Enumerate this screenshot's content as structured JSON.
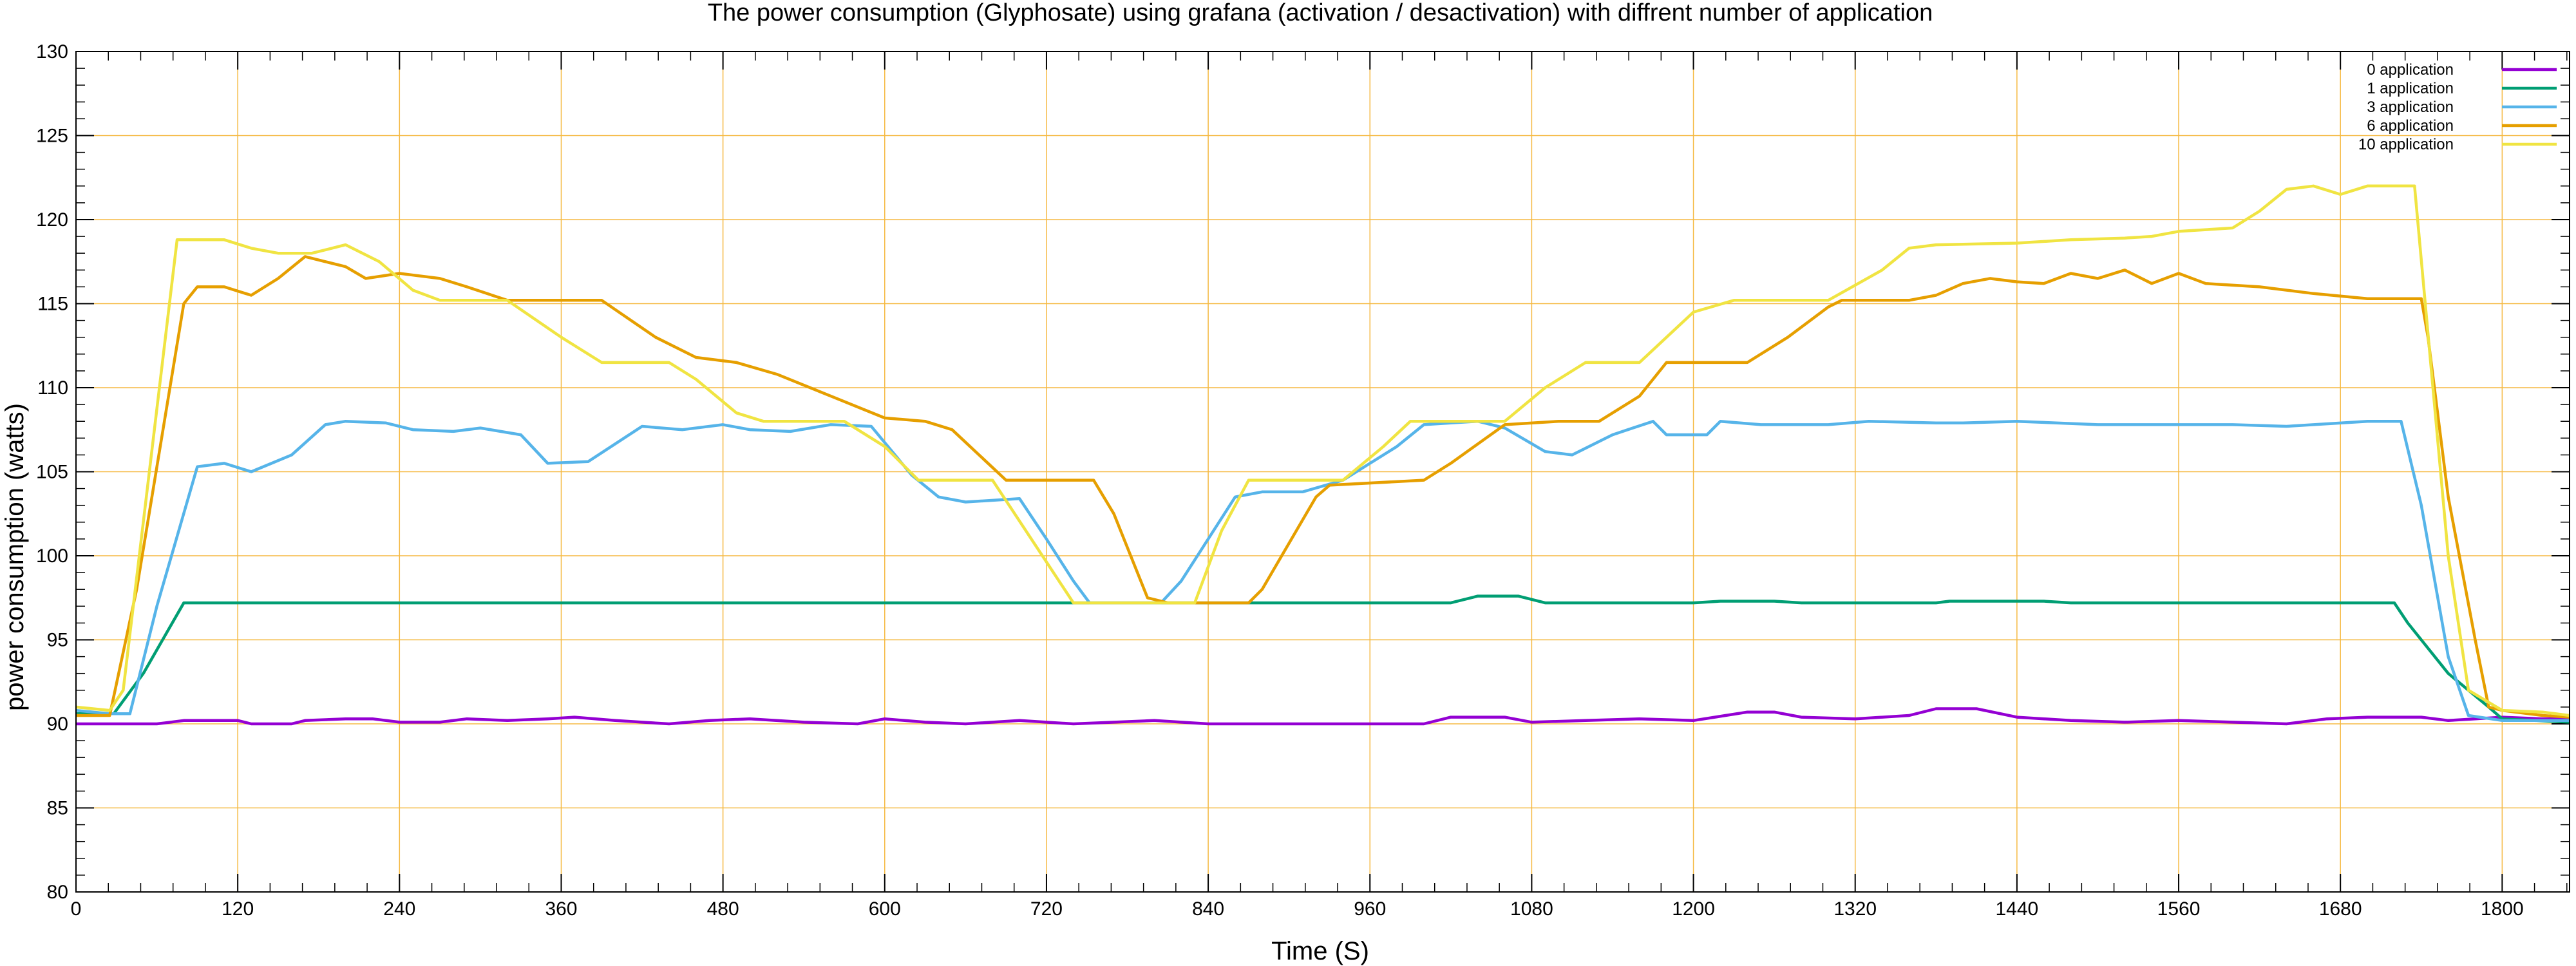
{
  "chart_data": {
    "type": "line",
    "title": "The power consumption (Glyphosate) using grafana (activation / desactivation) with diffrent number of application",
    "xlabel": "Time (S)",
    "ylabel": "power consumption (watts)",
    "xlim": [
      0,
      1850
    ],
    "ylim": [
      80,
      130
    ],
    "x_ticks": [
      0,
      120,
      240,
      360,
      480,
      600,
      720,
      840,
      960,
      1080,
      1200,
      1320,
      1440,
      1560,
      1680,
      1800
    ],
    "y_ticks": [
      80,
      85,
      90,
      95,
      100,
      105,
      110,
      115,
      120,
      125,
      130
    ],
    "grid": true,
    "grid_color": "#f5b942",
    "legend_position": "top-right",
    "series": [
      {
        "name": "0 application",
        "color": "#9400d3",
        "points": [
          [
            0,
            90.0
          ],
          [
            60,
            90.0
          ],
          [
            80,
            90.2
          ],
          [
            120,
            90.2
          ],
          [
            130,
            90.0
          ],
          [
            160,
            90.0
          ],
          [
            170,
            90.2
          ],
          [
            200,
            90.3
          ],
          [
            220,
            90.3
          ],
          [
            240,
            90.1
          ],
          [
            270,
            90.1
          ],
          [
            290,
            90.3
          ],
          [
            320,
            90.2
          ],
          [
            350,
            90.3
          ],
          [
            370,
            90.4
          ],
          [
            400,
            90.2
          ],
          [
            440,
            90.0
          ],
          [
            470,
            90.2
          ],
          [
            500,
            90.3
          ],
          [
            540,
            90.1
          ],
          [
            580,
            90.0
          ],
          [
            600,
            90.3
          ],
          [
            630,
            90.1
          ],
          [
            660,
            90.0
          ],
          [
            700,
            90.2
          ],
          [
            740,
            90.0
          ],
          [
            800,
            90.2
          ],
          [
            840,
            90.0
          ],
          [
            1000,
            90.0
          ],
          [
            1020,
            90.4
          ],
          [
            1060,
            90.4
          ],
          [
            1080,
            90.1
          ],
          [
            1120,
            90.2
          ],
          [
            1160,
            90.3
          ],
          [
            1200,
            90.2
          ],
          [
            1240,
            90.7
          ],
          [
            1260,
            90.7
          ],
          [
            1280,
            90.4
          ],
          [
            1320,
            90.3
          ],
          [
            1360,
            90.5
          ],
          [
            1380,
            90.9
          ],
          [
            1410,
            90.9
          ],
          [
            1440,
            90.4
          ],
          [
            1480,
            90.2
          ],
          [
            1520,
            90.1
          ],
          [
            1560,
            90.2
          ],
          [
            1600,
            90.1
          ],
          [
            1640,
            90.0
          ],
          [
            1670,
            90.3
          ],
          [
            1700,
            90.4
          ],
          [
            1740,
            90.4
          ],
          [
            1760,
            90.2
          ],
          [
            1780,
            90.3
          ],
          [
            1800,
            90.4
          ],
          [
            1830,
            90.3
          ],
          [
            1850,
            90.3
          ]
        ]
      },
      {
        "name": "1 application",
        "color": "#009e73",
        "points": [
          [
            0,
            90.6
          ],
          [
            28,
            90.6
          ],
          [
            50,
            93.0
          ],
          [
            80,
            97.2
          ],
          [
            1020,
            97.2
          ],
          [
            1040,
            97.6
          ],
          [
            1070,
            97.6
          ],
          [
            1090,
            97.2
          ],
          [
            1200,
            97.2
          ],
          [
            1220,
            97.3
          ],
          [
            1260,
            97.3
          ],
          [
            1280,
            97.2
          ],
          [
            1380,
            97.2
          ],
          [
            1390,
            97.3
          ],
          [
            1460,
            97.3
          ],
          [
            1480,
            97.2
          ],
          [
            1720,
            97.2
          ],
          [
            1730,
            96.0
          ],
          [
            1760,
            93.0
          ],
          [
            1790,
            91.0
          ],
          [
            1800,
            90.3
          ],
          [
            1850,
            90.1
          ]
        ]
      },
      {
        "name": "3 application",
        "color": "#56b4e9",
        "points": [
          [
            0,
            90.8
          ],
          [
            25,
            90.6
          ],
          [
            40,
            90.6
          ],
          [
            60,
            97.0
          ],
          [
            90,
            105.3
          ],
          [
            110,
            105.5
          ],
          [
            130,
            105.0
          ],
          [
            160,
            106.0
          ],
          [
            185,
            107.8
          ],
          [
            200,
            108.0
          ],
          [
            230,
            107.9
          ],
          [
            250,
            107.5
          ],
          [
            280,
            107.4
          ],
          [
            300,
            107.6
          ],
          [
            330,
            107.2
          ],
          [
            350,
            105.5
          ],
          [
            380,
            105.6
          ],
          [
            420,
            107.7
          ],
          [
            450,
            107.5
          ],
          [
            480,
            107.8
          ],
          [
            500,
            107.5
          ],
          [
            530,
            107.4
          ],
          [
            560,
            107.8
          ],
          [
            590,
            107.7
          ],
          [
            620,
            104.8
          ],
          [
            640,
            103.5
          ],
          [
            660,
            103.2
          ],
          [
            700,
            103.4
          ],
          [
            720,
            101.0
          ],
          [
            740,
            98.5
          ],
          [
            752,
            97.2
          ],
          [
            805,
            97.2
          ],
          [
            820,
            98.5
          ],
          [
            860,
            103.5
          ],
          [
            880,
            103.8
          ],
          [
            910,
            103.8
          ],
          [
            940,
            104.5
          ],
          [
            980,
            106.5
          ],
          [
            1000,
            107.8
          ],
          [
            1040,
            108.0
          ],
          [
            1060,
            107.6
          ],
          [
            1090,
            106.2
          ],
          [
            1110,
            106.0
          ],
          [
            1140,
            107.2
          ],
          [
            1170,
            108.0
          ],
          [
            1180,
            107.2
          ],
          [
            1210,
            107.2
          ],
          [
            1220,
            108.0
          ],
          [
            1250,
            107.8
          ],
          [
            1300,
            107.8
          ],
          [
            1330,
            108.0
          ],
          [
            1380,
            107.9
          ],
          [
            1400,
            107.9
          ],
          [
            1440,
            108.0
          ],
          [
            1500,
            107.8
          ],
          [
            1560,
            107.8
          ],
          [
            1600,
            107.8
          ],
          [
            1640,
            107.7
          ],
          [
            1700,
            108.0
          ],
          [
            1725,
            108.0
          ],
          [
            1740,
            103.0
          ],
          [
            1760,
            94.0
          ],
          [
            1775,
            90.5
          ],
          [
            1800,
            90.2
          ],
          [
            1850,
            90.2
          ]
        ]
      },
      {
        "name": "6 application",
        "color": "#e69f00",
        "points": [
          [
            0,
            90.5
          ],
          [
            25,
            90.5
          ],
          [
            45,
            98.0
          ],
          [
            80,
            115.0
          ],
          [
            90,
            116.0
          ],
          [
            110,
            116.0
          ],
          [
            130,
            115.5
          ],
          [
            150,
            116.5
          ],
          [
            170,
            117.8
          ],
          [
            185,
            117.5
          ],
          [
            200,
            117.2
          ],
          [
            215,
            116.5
          ],
          [
            240,
            116.8
          ],
          [
            270,
            116.5
          ],
          [
            290,
            116.0
          ],
          [
            320,
            115.2
          ],
          [
            390,
            115.2
          ],
          [
            430,
            113.0
          ],
          [
            460,
            111.8
          ],
          [
            490,
            111.5
          ],
          [
            520,
            110.8
          ],
          [
            560,
            109.5
          ],
          [
            600,
            108.2
          ],
          [
            630,
            108.0
          ],
          [
            650,
            107.5
          ],
          [
            690,
            104.5
          ],
          [
            755,
            104.5
          ],
          [
            770,
            102.5
          ],
          [
            795,
            97.5
          ],
          [
            810,
            97.2
          ],
          [
            870,
            97.2
          ],
          [
            880,
            98.0
          ],
          [
            920,
            103.5
          ],
          [
            930,
            104.2
          ],
          [
            1000,
            104.5
          ],
          [
            1020,
            105.5
          ],
          [
            1060,
            107.8
          ],
          [
            1100,
            108.0
          ],
          [
            1130,
            108.0
          ],
          [
            1160,
            109.5
          ],
          [
            1180,
            111.5
          ],
          [
            1240,
            111.5
          ],
          [
            1270,
            113.0
          ],
          [
            1300,
            114.8
          ],
          [
            1310,
            115.2
          ],
          [
            1360,
            115.2
          ],
          [
            1380,
            115.5
          ],
          [
            1400,
            116.2
          ],
          [
            1420,
            116.5
          ],
          [
            1440,
            116.3
          ],
          [
            1460,
            116.2
          ],
          [
            1480,
            116.8
          ],
          [
            1500,
            116.5
          ],
          [
            1520,
            117.0
          ],
          [
            1540,
            116.2
          ],
          [
            1560,
            116.8
          ],
          [
            1580,
            116.2
          ],
          [
            1620,
            116.0
          ],
          [
            1660,
            115.6
          ],
          [
            1700,
            115.3
          ],
          [
            1740,
            115.3
          ],
          [
            1745,
            113.0
          ],
          [
            1760,
            103.5
          ],
          [
            1780,
            95.0
          ],
          [
            1790,
            91.0
          ],
          [
            1800,
            90.8
          ],
          [
            1830,
            90.5
          ],
          [
            1850,
            90.4
          ]
        ]
      },
      {
        "name": "10 application",
        "color": "#f0e442",
        "points": [
          [
            0,
            91.0
          ],
          [
            25,
            90.8
          ],
          [
            35,
            92.0
          ],
          [
            75,
            118.8
          ],
          [
            110,
            118.8
          ],
          [
            130,
            118.3
          ],
          [
            150,
            118.0
          ],
          [
            175,
            118.0
          ],
          [
            200,
            118.5
          ],
          [
            225,
            117.5
          ],
          [
            250,
            115.8
          ],
          [
            270,
            115.2
          ],
          [
            320,
            115.2
          ],
          [
            360,
            113.0
          ],
          [
            390,
            111.5
          ],
          [
            440,
            111.5
          ],
          [
            460,
            110.5
          ],
          [
            490,
            108.5
          ],
          [
            510,
            108.0
          ],
          [
            570,
            108.0
          ],
          [
            600,
            106.5
          ],
          [
            625,
            104.5
          ],
          [
            680,
            104.5
          ],
          [
            740,
            97.2
          ],
          [
            830,
            97.2
          ],
          [
            850,
            101.5
          ],
          [
            870,
            104.5
          ],
          [
            940,
            104.5
          ],
          [
            970,
            106.5
          ],
          [
            990,
            108.0
          ],
          [
            1060,
            108.0
          ],
          [
            1090,
            110.0
          ],
          [
            1120,
            111.5
          ],
          [
            1160,
            111.5
          ],
          [
            1200,
            114.5
          ],
          [
            1230,
            115.2
          ],
          [
            1300,
            115.2
          ],
          [
            1340,
            117.0
          ],
          [
            1360,
            118.3
          ],
          [
            1380,
            118.5
          ],
          [
            1440,
            118.6
          ],
          [
            1480,
            118.8
          ],
          [
            1520,
            118.9
          ],
          [
            1540,
            119.0
          ],
          [
            1560,
            119.3
          ],
          [
            1600,
            119.5
          ],
          [
            1620,
            120.5
          ],
          [
            1640,
            121.8
          ],
          [
            1660,
            122.0
          ],
          [
            1680,
            121.5
          ],
          [
            1700,
            122.0
          ],
          [
            1735,
            122.0
          ],
          [
            1760,
            100.0
          ],
          [
            1775,
            92.0
          ],
          [
            1800,
            90.8
          ],
          [
            1830,
            90.7
          ],
          [
            1850,
            90.5
          ]
        ]
      }
    ]
  }
}
